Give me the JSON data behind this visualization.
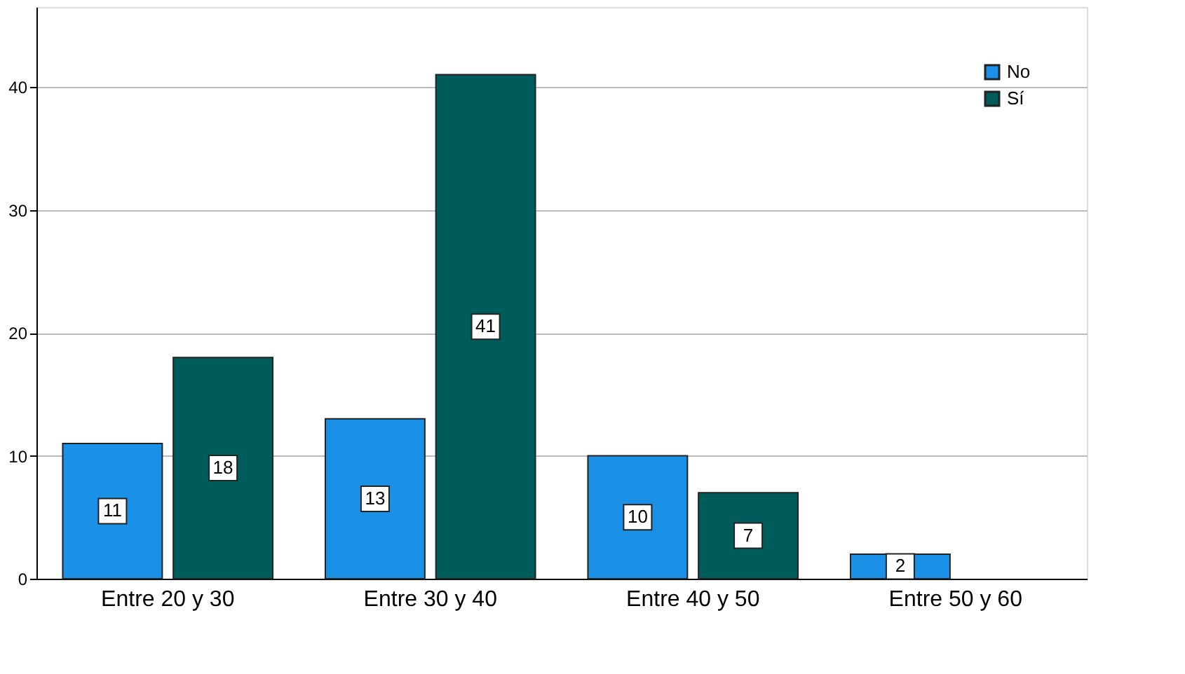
{
  "chart_data": {
    "type": "bar",
    "categories": [
      "Entre 20 y 30",
      "Entre 30 y 40",
      "Entre 40 y 50",
      "Entre 50 y 60"
    ],
    "series": [
      {
        "name": "No",
        "color": "#1a90e6",
        "values": [
          11,
          13,
          10,
          2
        ]
      },
      {
        "name": "Sí",
        "color": "#005c5a",
        "values": [
          18,
          41,
          7,
          null
        ]
      }
    ],
    "ylim": [
      0,
      46.5
    ],
    "yticks": [
      0,
      10,
      20,
      30,
      40
    ],
    "grid": "y",
    "legend": "top right",
    "data_labels": true
  }
}
